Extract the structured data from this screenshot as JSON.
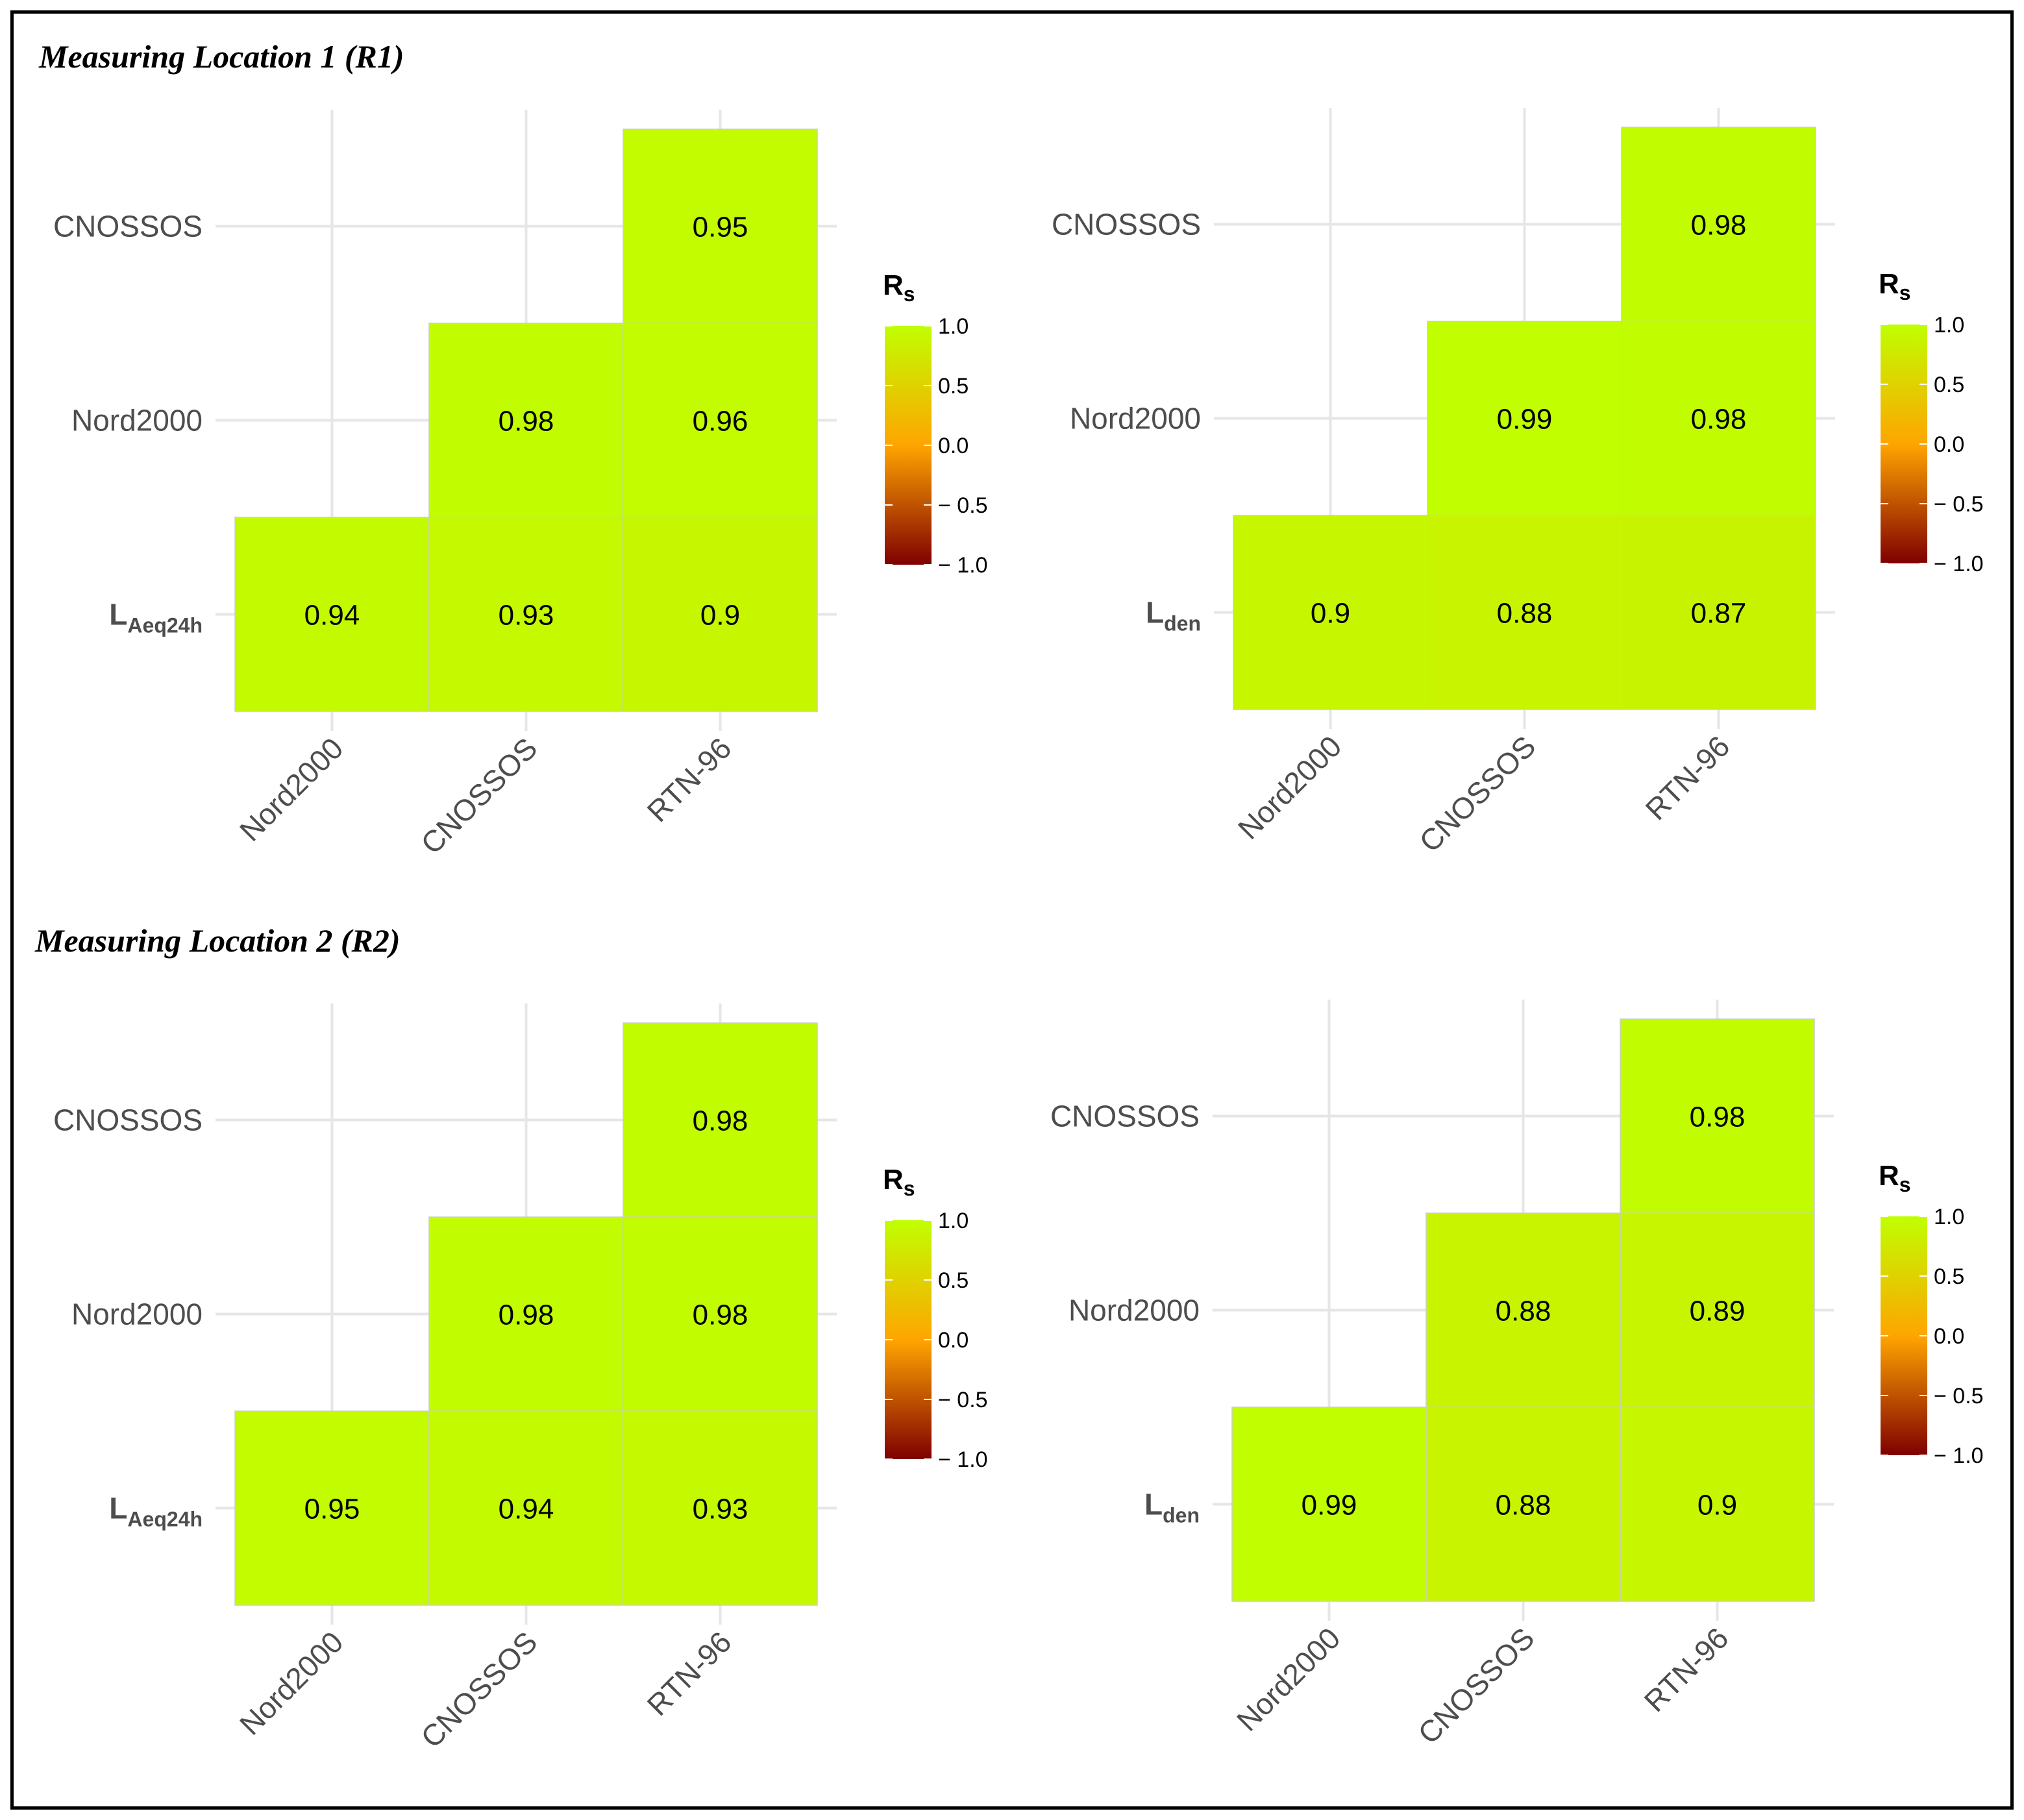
{
  "section_titles": {
    "r1": "Measuring Location 1 (R1)",
    "r2": "Measuring Location 2 (R2)"
  },
  "colors": {
    "scale_high": "#c0ff00",
    "scale_mid": "#ffa500",
    "scale_low": "#7f0000",
    "grid": "#e6e6e6",
    "tile_border": "#cccccc"
  },
  "chart_data": [
    {
      "type": "heatmap",
      "section": "r1",
      "x_categories": [
        "Nord2000",
        "CNOSSOS",
        "RTN-96"
      ],
      "y_categories": [
        {
          "main": "L",
          "sub": "Aeq24h"
        },
        {
          "main": "Nord2000",
          "sub": ""
        },
        {
          "main": "CNOSSOS",
          "sub": ""
        }
      ],
      "cells": [
        {
          "x": 0,
          "y": 0,
          "value": 0.94,
          "label": "0.94"
        },
        {
          "x": 1,
          "y": 0,
          "value": 0.93,
          "label": "0.93"
        },
        {
          "x": 2,
          "y": 0,
          "value": 0.9,
          "label": "0.9"
        },
        {
          "x": 1,
          "y": 1,
          "value": 0.98,
          "label": "0.98"
        },
        {
          "x": 2,
          "y": 1,
          "value": 0.96,
          "label": "0.96"
        },
        {
          "x": 2,
          "y": 2,
          "value": 0.95,
          "label": "0.95"
        }
      ],
      "legend": {
        "title_main": "R",
        "title_sub": "s",
        "limits": [
          -1,
          1
        ],
        "ticks": [
          "1.0",
          "0.5",
          "0.0",
          "− 0.5",
          "− 1.0"
        ],
        "tick_values": [
          1,
          0.5,
          0,
          -0.5,
          -1
        ]
      }
    },
    {
      "type": "heatmap",
      "section": "r1",
      "x_categories": [
        "Nord2000",
        "CNOSSOS",
        "RTN-96"
      ],
      "y_categories": [
        {
          "main": "L",
          "sub": "den"
        },
        {
          "main": "Nord2000",
          "sub": ""
        },
        {
          "main": "CNOSSOS",
          "sub": ""
        }
      ],
      "cells": [
        {
          "x": 0,
          "y": 0,
          "value": 0.9,
          "label": "0.9"
        },
        {
          "x": 1,
          "y": 0,
          "value": 0.88,
          "label": "0.88"
        },
        {
          "x": 2,
          "y": 0,
          "value": 0.87,
          "label": "0.87"
        },
        {
          "x": 1,
          "y": 1,
          "value": 0.99,
          "label": "0.99"
        },
        {
          "x": 2,
          "y": 1,
          "value": 0.98,
          "label": "0.98"
        },
        {
          "x": 2,
          "y": 2,
          "value": 0.98,
          "label": "0.98"
        }
      ],
      "legend": {
        "title_main": "R",
        "title_sub": "s",
        "limits": [
          -1,
          1
        ],
        "ticks": [
          "1.0",
          "0.5",
          "0.0",
          "− 0.5",
          "− 1.0"
        ],
        "tick_values": [
          1,
          0.5,
          0,
          -0.5,
          -1
        ]
      }
    },
    {
      "type": "heatmap",
      "section": "r2",
      "x_categories": [
        "Nord2000",
        "CNOSSOS",
        "RTN-96"
      ],
      "y_categories": [
        {
          "main": "L",
          "sub": "Aeq24h"
        },
        {
          "main": "Nord2000",
          "sub": ""
        },
        {
          "main": "CNOSSOS",
          "sub": ""
        }
      ],
      "cells": [
        {
          "x": 0,
          "y": 0,
          "value": 0.95,
          "label": "0.95"
        },
        {
          "x": 1,
          "y": 0,
          "value": 0.94,
          "label": "0.94"
        },
        {
          "x": 2,
          "y": 0,
          "value": 0.93,
          "label": "0.93"
        },
        {
          "x": 1,
          "y": 1,
          "value": 0.98,
          "label": "0.98"
        },
        {
          "x": 2,
          "y": 1,
          "value": 0.98,
          "label": "0.98"
        },
        {
          "x": 2,
          "y": 2,
          "value": 0.98,
          "label": "0.98"
        }
      ],
      "legend": {
        "title_main": "R",
        "title_sub": "s",
        "limits": [
          -1,
          1
        ],
        "ticks": [
          "1.0",
          "0.5",
          "0.0",
          "− 0.5",
          "− 1.0"
        ],
        "tick_values": [
          1,
          0.5,
          0,
          -0.5,
          -1
        ]
      }
    },
    {
      "type": "heatmap",
      "section": "r2",
      "x_categories": [
        "Nord2000",
        "CNOSSOS",
        "RTN-96"
      ],
      "y_categories": [
        {
          "main": "L",
          "sub": "den"
        },
        {
          "main": "Nord2000",
          "sub": ""
        },
        {
          "main": "CNOSSOS",
          "sub": ""
        }
      ],
      "cells": [
        {
          "x": 0,
          "y": 0,
          "value": 0.99,
          "label": "0.99"
        },
        {
          "x": 1,
          "y": 0,
          "value": 0.88,
          "label": "0.88"
        },
        {
          "x": 2,
          "y": 0,
          "value": 0.9,
          "label": "0.9"
        },
        {
          "x": 1,
          "y": 1,
          "value": 0.88,
          "label": "0.88"
        },
        {
          "x": 2,
          "y": 1,
          "value": 0.89,
          "label": "0.89"
        },
        {
          "x": 2,
          "y": 2,
          "value": 0.98,
          "label": "0.98"
        }
      ],
      "legend": {
        "title_main": "R",
        "title_sub": "s",
        "limits": [
          -1,
          1
        ],
        "ticks": [
          "1.0",
          "0.5",
          "0.0",
          "− 0.5",
          "− 1.0"
        ],
        "tick_values": [
          1,
          0.5,
          0,
          -0.5,
          -1
        ]
      }
    }
  ]
}
